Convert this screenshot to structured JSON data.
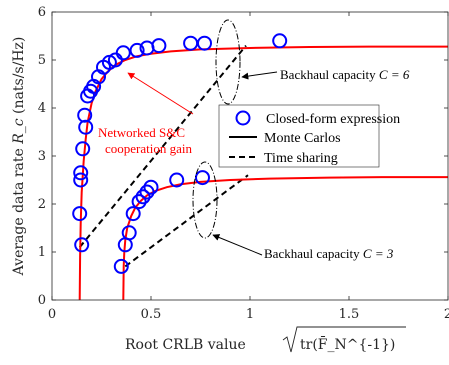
{
  "chart_data": {
    "type": "line",
    "xlabel": "Root CRLB value",
    "xlabel_math": "tr(F̄_N^{-1})",
    "ylabel": "Average data rate",
    "ylabel_math": "R_c",
    "ylabel_unit": "(nats/s/Hz)",
    "xlim": [
      0,
      2
    ],
    "ylim": [
      0,
      6
    ],
    "xticks": [
      "0",
      "0.5",
      "1",
      "1.5",
      "2"
    ],
    "yticks": [
      "0",
      "1",
      "2",
      "3",
      "4",
      "5",
      "6"
    ],
    "grid": false,
    "legend_position": "center-right",
    "legend": [
      {
        "label": "Closed-form expression",
        "style": "circle",
        "color": "#0000ff"
      },
      {
        "label": "Monte Carlos",
        "style": "solid",
        "color": "#000000"
      },
      {
        "label": "Time sharing",
        "style": "dashed",
        "color": "#000000"
      }
    ],
    "annotations": [
      {
        "text": "Backhaul capacity ",
        "math": "C = 6"
      },
      {
        "text": "Backhaul capacity ",
        "math": "C = 3"
      },
      {
        "text": "Networked S&C",
        "color": "#ff0000"
      },
      {
        "text": "cooperation  gain",
        "color": "#ff0000"
      }
    ],
    "series": [
      {
        "name": "Closed-form expression",
        "group": "C = 6",
        "style": "markers",
        "color": "#0000ff",
        "x": [
          0.15,
          0.14,
          0.145,
          0.145,
          0.155,
          0.17,
          0.165,
          0.18,
          0.195,
          0.21,
          0.235,
          0.26,
          0.29,
          0.32,
          0.36,
          0.43,
          0.48,
          0.54,
          0.7,
          0.77,
          1.15
        ],
        "y": [
          1.15,
          1.8,
          2.5,
          2.65,
          3.15,
          3.6,
          3.85,
          4.25,
          4.35,
          4.45,
          4.65,
          4.85,
          4.95,
          5.0,
          5.15,
          5.2,
          5.25,
          5.3,
          5.35,
          5.35,
          5.4
        ]
      },
      {
        "name": "Monte Carlos",
        "group": "C = 6",
        "style": "solid",
        "color": "#ff0000",
        "x": [
          0.14,
          0.142,
          0.145,
          0.15,
          0.16,
          0.17,
          0.18,
          0.2,
          0.22,
          0.25,
          0.28,
          0.32,
          0.37,
          0.43,
          0.5,
          0.6,
          0.75,
          1.0,
          1.3,
          1.6,
          2.0
        ],
        "y": [
          0.0,
          0.9,
          1.6,
          2.25,
          2.9,
          3.35,
          3.7,
          4.1,
          4.35,
          4.6,
          4.75,
          4.9,
          5.0,
          5.08,
          5.13,
          5.18,
          5.22,
          5.25,
          5.27,
          5.28,
          5.28
        ]
      },
      {
        "name": "Time sharing",
        "group": "C = 6",
        "style": "dashed",
        "color": "#000000",
        "x": [
          0.14,
          0.98
        ],
        "y": [
          1.1,
          5.3
        ]
      },
      {
        "name": "Closed-form expression",
        "group": "C = 3",
        "style": "markers",
        "color": "#0000ff",
        "x": [
          0.35,
          0.37,
          0.39,
          0.41,
          0.44,
          0.46,
          0.48,
          0.5,
          0.63,
          0.76
        ],
        "y": [
          0.7,
          1.15,
          1.4,
          1.8,
          2.05,
          2.15,
          2.25,
          2.35,
          2.5,
          2.55
        ]
      },
      {
        "name": "Monte Carlos",
        "group": "C = 3",
        "style": "solid",
        "color": "#ff0000",
        "x": [
          0.36,
          0.362,
          0.365,
          0.37,
          0.38,
          0.4,
          0.42,
          0.45,
          0.48,
          0.52,
          0.58,
          0.65,
          0.75,
          0.9,
          1.1,
          1.4,
          1.7,
          2.0
        ],
        "y": [
          0.0,
          0.7,
          1.0,
          1.25,
          1.5,
          1.75,
          1.92,
          2.07,
          2.18,
          2.27,
          2.35,
          2.41,
          2.46,
          2.5,
          2.53,
          2.55,
          2.56,
          2.56
        ]
      },
      {
        "name": "Time sharing",
        "group": "C = 3",
        "style": "dashed",
        "color": "#000000",
        "x": [
          0.37,
          0.99
        ],
        "y": [
          0.7,
          2.6
        ]
      }
    ]
  }
}
